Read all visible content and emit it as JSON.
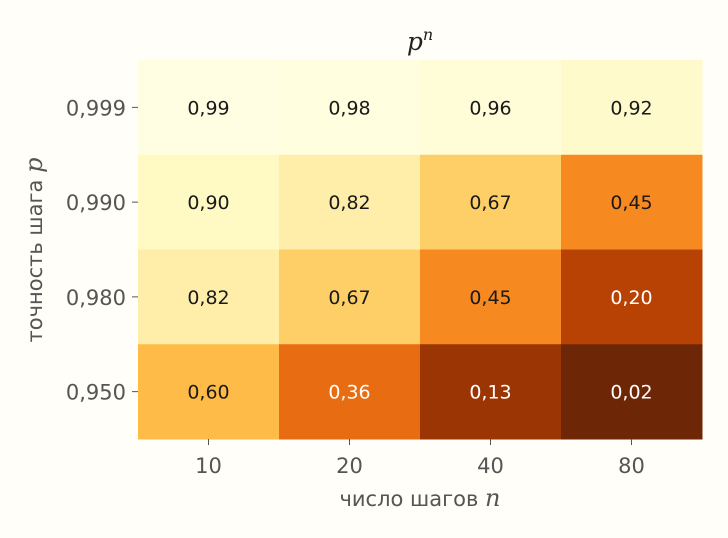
{
  "chart_data": {
    "type": "heatmap",
    "title_base": "p",
    "title_sup": "n",
    "xlabel": "число шагов",
    "xlabel_var": "n",
    "ylabel": "точность шага",
    "ylabel_var": "p",
    "x_categories": [
      "10",
      "20",
      "40",
      "80"
    ],
    "y_categories": [
      "0,999",
      "0,990",
      "0,980",
      "0,950"
    ],
    "values": [
      [
        0.99,
        0.98,
        0.96,
        0.92
      ],
      [
        0.9,
        0.82,
        0.67,
        0.45
      ],
      [
        0.82,
        0.67,
        0.45,
        0.2
      ],
      [
        0.6,
        0.36,
        0.13,
        0.02
      ]
    ],
    "labels": [
      [
        "0,99",
        "0,98",
        "0,96",
        "0,92"
      ],
      [
        "0,90",
        "0,82",
        "0,67",
        "0,45"
      ],
      [
        "0,82",
        "0,67",
        "0,45",
        "0,20"
      ],
      [
        "0,60",
        "0,36",
        "0,13",
        "0,02"
      ]
    ],
    "colormap": "YlOrBr",
    "color_range": [
      0,
      1
    ],
    "grid": false,
    "legend": "none"
  }
}
